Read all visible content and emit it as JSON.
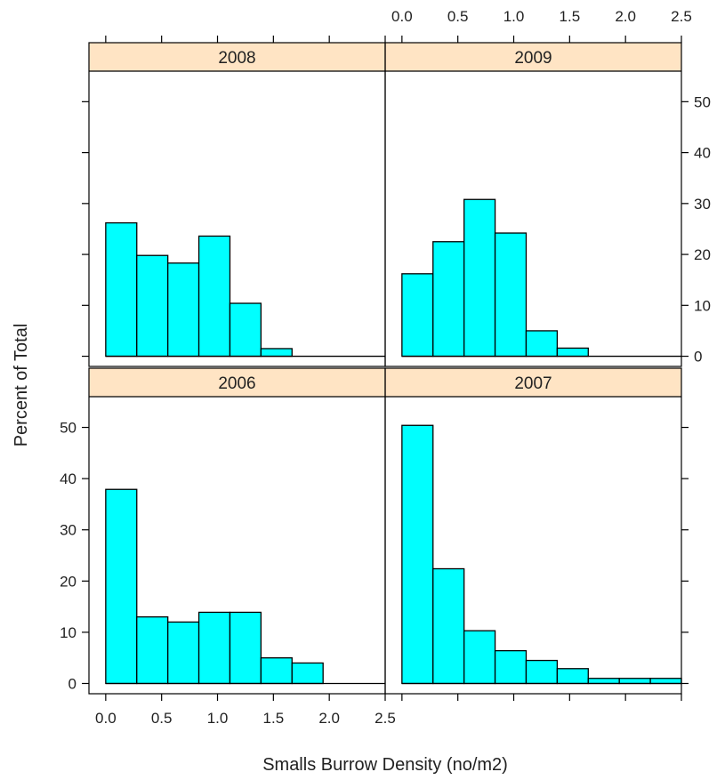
{
  "chart_data": {
    "type": "bar",
    "layout": "lattice histogram, 2x2 panels",
    "xlabel": "Smalls Burrow Density (no/m2)",
    "ylabel": "Percent of Total",
    "xlim": [
      -0.15,
      2.5
    ],
    "ylim": [
      -2,
      56
    ],
    "x_ticks": [
      0.0,
      0.5,
      1.0,
      1.5,
      2.0,
      2.5
    ],
    "x_tick_labels": [
      "0.0",
      "0.5",
      "1.0",
      "1.5",
      "2.0",
      "2.5"
    ],
    "y_ticks": [
      0,
      10,
      20,
      30,
      40,
      50
    ],
    "y_tick_labels": [
      "0",
      "10",
      "20",
      "30",
      "40",
      "50"
    ],
    "grid": false,
    "colors": {
      "bar_fill": "#00ffff",
      "strip_fill": "#ffe4c4"
    },
    "panels": [
      {
        "name": "2008",
        "bin_edges": [
          0,
          0.2778,
          0.5556,
          0.8333,
          1.1111,
          1.3889,
          1.6667
        ],
        "values": [
          26.2,
          19.8,
          18.3,
          23.6,
          10.4,
          1.5
        ]
      },
      {
        "name": "2009",
        "bin_edges": [
          0,
          0.2778,
          0.5556,
          0.8333,
          1.1111,
          1.3889,
          1.6667
        ],
        "values": [
          16.2,
          22.5,
          30.8,
          24.2,
          5.0,
          1.6
        ]
      },
      {
        "name": "2006",
        "bin_edges": [
          0,
          0.2778,
          0.5556,
          0.8333,
          1.1111,
          1.3889,
          1.6667,
          1.9444
        ],
        "values": [
          37.9,
          13.0,
          12.0,
          13.9,
          13.9,
          5.0,
          4.0
        ]
      },
      {
        "name": "2007",
        "bin_edges": [
          0,
          0.2778,
          0.5556,
          0.8333,
          1.1111,
          1.3889,
          1.6667,
          1.9444,
          2.2222,
          2.5
        ],
        "values": [
          50.4,
          22.4,
          10.3,
          6.4,
          4.5,
          2.9,
          1.0,
          1.0,
          1.0
        ]
      }
    ]
  }
}
